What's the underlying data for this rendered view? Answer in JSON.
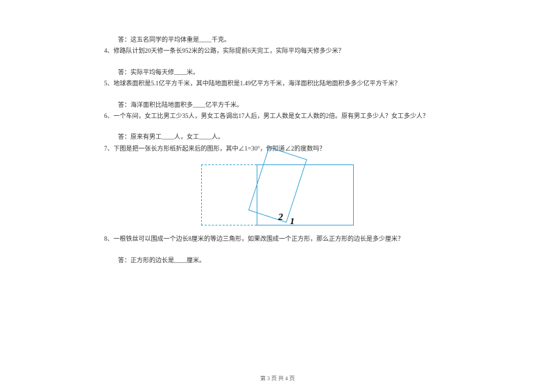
{
  "q3_answer": "答：这五名同学的平均体重是____千克。",
  "q4": "4、修路队计划20天修一条长952米的公路，实际提前6天完工，实际平均每天修多少米？",
  "q4_answer": "答：实际平均每天修____米。",
  "q5": "5、地球表面积是5.1亿平方千米，其中陆地面积是1.49亿平方千米，海洋面积比陆地面积多多少亿平方千米？",
  "q5_answer": "答：海洋面积比陆地面积多____亿平方千米。",
  "q6": "6、一个车间，女工比男工少35人，男女工各调出17人后，男工人数是女工人数的2倍。原有男工多少人？女工多少人？",
  "q6_answer": "答：原来有男工____人，女工____人。",
  "q7": "7、下图是把一张长方形纸折起来后的图形，其中∠1=30°，你知道∠2的度数吗？",
  "q8": "8、一根铁丝可以围成一个边长8厘米的等边三角形，如果改围成一个正方形，那么正方形的边长是多少厘米？",
  "q8_answer": "答：正方形的边长是____厘米。",
  "figure": {
    "angle1_label": "1",
    "angle2_label": "2",
    "stroke_color": "#3aa5d8",
    "dash_color": "#3aa5d8"
  },
  "footer": "第 3 页 共 4 页"
}
